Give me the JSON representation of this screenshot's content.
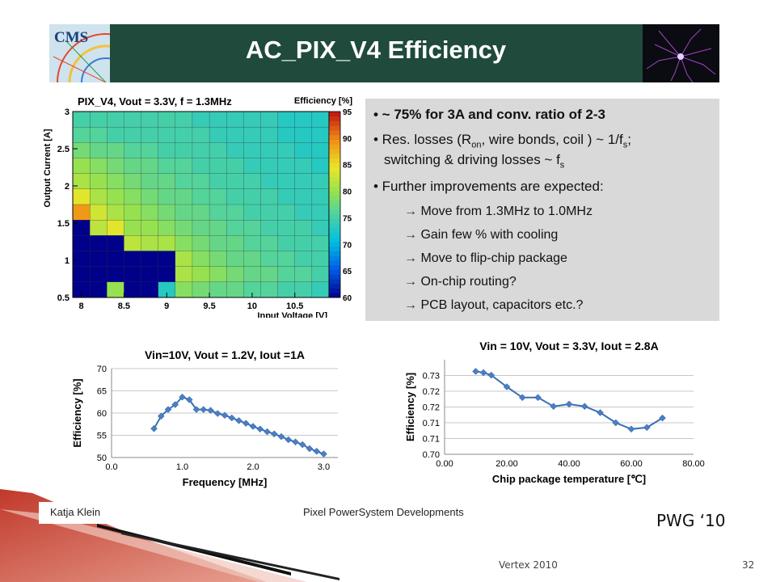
{
  "slide": {
    "title": "AC_PIX_V4  Efficiency",
    "logo_text": "CMS",
    "bullets": [
      {
        "pre": "• ~ 75% for 3A and conv. ratio of 2-3"
      },
      {
        "l1a": "• Res. losses (R",
        "l1b": "on",
        "l1c": ", wire bonds, coil ) ~ 1/f",
        "l1d": "s",
        "l1e": ";",
        "l2a": "switching & driving losses ~ f",
        "l2b": "s"
      },
      {
        "pre": "• Further improvements are expected:"
      }
    ],
    "subitems": [
      "Move from 1.3MHz to 1.0MHz",
      "Gain few % with cooling",
      "Move to flip-chip package",
      "On-chip routing?",
      "PCB layout, capacitors etc.?"
    ],
    "footer_left": "Katja Klein",
    "footer_mid": "Pixel PowerSystem Developments",
    "pwg": "PWG ‘10",
    "conference": "Vertex 2010",
    "slide_number": "32"
  },
  "chart_data": [
    {
      "type": "heatmap",
      "title": "PIX_V4, Vout = 3.3V, f = 1.3MHz",
      "xlabel": "Input Voltage [V]",
      "ylabel": "Output Current [A]",
      "colorbar_label": "Efficiency [%]",
      "xlim": [
        7.9,
        10.9
      ],
      "ylim": [
        0.5,
        3.0
      ],
      "x_ticks": [
        "8",
        "8.5",
        "9",
        "9.5",
        "10",
        "10.5"
      ],
      "x_tick_values": [
        8,
        8.5,
        9,
        9.5,
        10,
        10.5
      ],
      "y_ticks": [
        "0.5",
        "1",
        "1.5",
        "2",
        "2.5",
        "3"
      ],
      "y_tick_values": [
        0.5,
        1,
        1.5,
        2,
        2.5,
        3
      ],
      "colorbar_ticks": [
        "60",
        "65",
        "70",
        "75",
        "80",
        "85",
        "90",
        "95"
      ],
      "zlim": [
        60,
        95
      ],
      "ncols": 15,
      "nrows": 12,
      "row_order": "top-to-bottom",
      "values": [
        [
          75,
          75,
          75,
          75,
          75,
          75,
          75,
          74,
          74,
          74,
          74,
          74,
          73,
          73,
          73
        ],
        [
          76,
          76,
          75,
          75,
          75,
          75,
          75,
          75,
          74,
          74,
          74,
          74,
          73,
          73,
          73
        ],
        [
          78,
          77,
          77,
          76,
          76,
          75,
          75,
          75,
          75,
          74,
          74,
          74,
          74,
          73,
          73
        ],
        [
          80,
          79,
          78,
          77,
          77,
          76,
          76,
          75,
          75,
          75,
          74,
          74,
          74,
          74,
          73
        ],
        [
          81,
          80,
          79,
          78,
          77,
          77,
          76,
          76,
          75,
          75,
          75,
          74,
          74,
          74,
          74
        ],
        [
          84,
          81,
          80,
          79,
          78,
          77,
          77,
          76,
          76,
          75,
          75,
          75,
          74,
          74,
          74
        ],
        [
          89,
          83,
          81,
          80,
          79,
          78,
          77,
          77,
          76,
          76,
          75,
          75,
          75,
          74,
          74
        ],
        [
          60,
          82,
          84,
          80,
          80,
          79,
          78,
          77,
          77,
          76,
          76,
          75,
          75,
          75,
          74
        ],
        [
          60,
          60,
          60,
          82,
          81,
          81,
          79,
          78,
          77,
          77,
          76,
          76,
          75,
          75,
          75
        ],
        [
          60,
          60,
          60,
          60,
          60,
          60,
          81,
          79,
          78,
          77,
          77,
          76,
          76,
          75,
          75
        ],
        [
          60,
          60,
          60,
          60,
          60,
          60,
          81,
          80,
          79,
          78,
          77,
          77,
          76,
          76,
          75
        ],
        [
          60,
          60,
          80,
          60,
          60,
          73,
          79,
          78,
          77,
          77,
          76,
          76,
          75,
          75,
          74
        ]
      ]
    },
    {
      "type": "line",
      "title": "Vin=10V, Vout = 1.2V, Iout =1A",
      "xlabel": "Frequency [MHz]",
      "ylabel": "Efficiency [%]",
      "xlim": [
        0,
        3.2
      ],
      "ylim": [
        50,
        70
      ],
      "x_ticks": [
        "0.0",
        "1.0",
        "2.0",
        "3.0"
      ],
      "x_tick_values": [
        0,
        1,
        2,
        3
      ],
      "y_ticks": [
        "50",
        "55",
        "60",
        "65",
        "70"
      ],
      "y_tick_values": [
        50,
        55,
        60,
        65,
        70
      ],
      "x": [
        0.6,
        0.7,
        0.8,
        0.9,
        1.0,
        1.1,
        1.2,
        1.3,
        1.4,
        1.5,
        1.6,
        1.7,
        1.8,
        1.9,
        2.0,
        2.1,
        2.2,
        2.3,
        2.4,
        2.5,
        2.6,
        2.7,
        2.8,
        2.9,
        3.0
      ],
      "y": [
        56.5,
        59.3,
        60.8,
        61.9,
        63.6,
        63.0,
        60.8,
        60.8,
        60.6,
        59.9,
        59.5,
        58.9,
        58.3,
        57.7,
        57.0,
        56.4,
        55.8,
        55.3,
        54.7,
        54.0,
        53.5,
        52.9,
        52.0,
        51.4,
        50.8
      ]
    },
    {
      "type": "line",
      "title": "Vin = 10V, Vout = 3.3V, Iout = 2.8A",
      "xlabel": "Chip package temperature [℃]",
      "ylabel": "Efficiency [%]",
      "xlim": [
        0,
        80
      ],
      "ylim": [
        0.7,
        0.73
      ],
      "x_ticks": [
        "0.00",
        "20.00",
        "40.00",
        "60.00",
        "80.00"
      ],
      "x_tick_values": [
        0,
        20,
        40,
        60,
        80
      ],
      "y_ticks": [
        "0.70",
        "0.71",
        "0.71",
        "0.72",
        "0.72",
        "0.73"
      ],
      "y_tick_values": [
        0.7,
        0.705,
        0.71,
        0.715,
        0.72,
        0.725
      ],
      "x": [
        10,
        12.5,
        15,
        20,
        25,
        30,
        35,
        40,
        45,
        50,
        55,
        60,
        65,
        70
      ],
      "y": [
        0.7263,
        0.7259,
        0.7251,
        0.7214,
        0.718,
        0.718,
        0.7152,
        0.7159,
        0.7152,
        0.7132,
        0.71,
        0.708,
        0.7085,
        0.7115
      ]
    }
  ]
}
